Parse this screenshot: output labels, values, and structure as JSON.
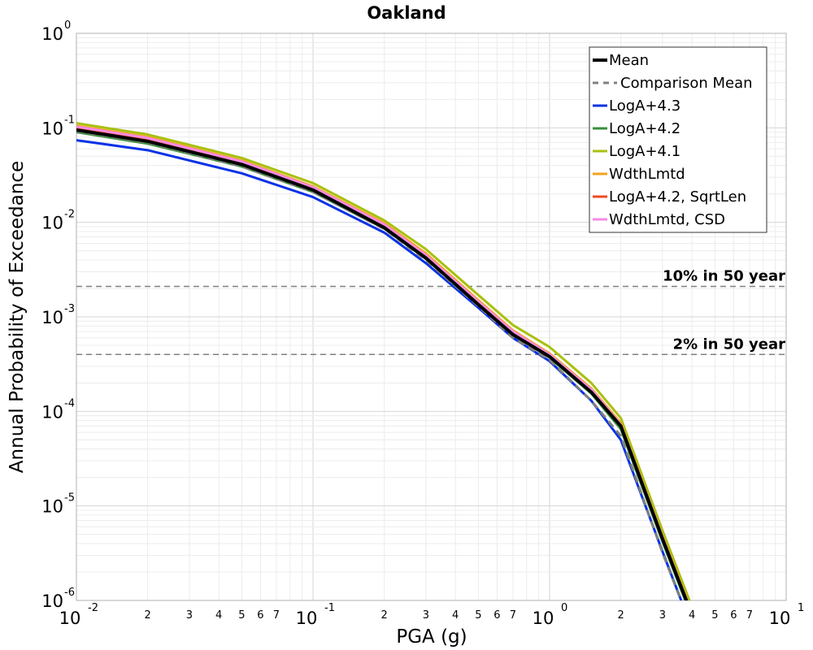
{
  "chart_data": {
    "type": "line",
    "title": "Oakland",
    "xlabel": "PGA (g)",
    "ylabel": "Annual Probability of Exceedance",
    "xscale": "log",
    "yscale": "log",
    "xlim": [
      0.01,
      10
    ],
    "ylim": [
      1e-06,
      1
    ],
    "grid": true,
    "legend_position": "top-right",
    "x_ticks": [
      {
        "base": "10",
        "exp": "-2",
        "value": 0.01
      },
      {
        "base": "10",
        "exp": "-1",
        "value": 0.1
      },
      {
        "base": "10",
        "exp": "0",
        "value": 1
      },
      {
        "base": "10",
        "exp": "1",
        "value": 10
      }
    ],
    "y_ticks": [
      {
        "base": "10",
        "exp": "0",
        "value": 1
      },
      {
        "base": "10",
        "exp": "-1",
        "value": 0.1
      },
      {
        "base": "10",
        "exp": "-2",
        "value": 0.01
      },
      {
        "base": "10",
        "exp": "-3",
        "value": 0.001
      },
      {
        "base": "10",
        "exp": "-4",
        "value": 0.0001
      },
      {
        "base": "10",
        "exp": "-5",
        "value": 1e-05
      },
      {
        "base": "10",
        "exp": "-6",
        "value": 1e-06
      }
    ],
    "x_minor_labels": [
      "2",
      "3",
      "4",
      "5",
      "6",
      "7"
    ],
    "x": [
      0.01,
      0.02,
      0.05,
      0.1,
      0.2,
      0.3,
      0.5,
      0.7,
      1.0,
      1.5,
      2.0,
      3.0,
      4.0
    ],
    "series": [
      {
        "name": "Mean",
        "color": "#000000",
        "style": "solid",
        "values": [
          0.095,
          0.072,
          0.041,
          0.022,
          0.0088,
          0.0042,
          0.00135,
          0.00065,
          0.00038,
          0.00016,
          7e-05,
          4.5e-06,
          7e-07
        ]
      },
      {
        "name": "Comparison Mean",
        "color": "#808080",
        "style": "dashed",
        "values": [
          0.092,
          0.07,
          0.039,
          0.021,
          0.0085,
          0.004,
          0.0013,
          0.0006,
          0.00035,
          0.00013,
          5.5e-05,
          3.2e-06,
          5e-07
        ]
      },
      {
        "name": "LogA+4.3",
        "color": "#0a32e6",
        "style": "solid",
        "values": [
          0.074,
          0.058,
          0.033,
          0.0185,
          0.0078,
          0.0037,
          0.00125,
          0.0006,
          0.00034,
          0.00013,
          5e-05,
          3.3e-06,
          5e-07
        ]
      },
      {
        "name": "LogA+4.2",
        "color": "#3a8f3a",
        "style": "solid",
        "values": [
          0.09,
          0.068,
          0.039,
          0.021,
          0.0086,
          0.0041,
          0.00135,
          0.00065,
          0.00037,
          0.000155,
          6.5e-05,
          4.2e-06,
          6.5e-07
        ]
      },
      {
        "name": "LogA+4.1",
        "color": "#a8c010",
        "style": "solid",
        "values": [
          0.112,
          0.085,
          0.048,
          0.026,
          0.0105,
          0.0052,
          0.0017,
          0.00082,
          0.00048,
          0.0002,
          8.5e-05,
          5.5e-06,
          8.5e-07
        ]
      },
      {
        "name": "WdthLmtd",
        "color": "#f5a21e",
        "style": "solid",
        "values": [
          0.105,
          0.08,
          0.045,
          0.024,
          0.0098,
          0.0047,
          0.0015,
          0.00072,
          0.00041,
          0.000175,
          7.5e-05,
          4.8e-06,
          7.5e-07
        ]
      },
      {
        "name": "LogA+4.2, SqrtLen",
        "color": "#f04a1e",
        "style": "solid",
        "values": [
          0.1,
          0.076,
          0.043,
          0.023,
          0.0093,
          0.0044,
          0.00142,
          0.00068,
          0.00039,
          0.000165,
          7e-05,
          4.5e-06,
          7e-07
        ]
      },
      {
        "name": "WdthLmtd, CSD",
        "color": "#f58ae6",
        "style": "solid",
        "values": [
          0.103,
          0.078,
          0.044,
          0.0235,
          0.0095,
          0.0045,
          0.00145,
          0.0007,
          0.0004,
          0.00017,
          7.2e-05,
          4.7e-06,
          7.2e-07
        ]
      }
    ],
    "reference_lines": [
      {
        "label": "10% in 50 year",
        "y": 0.0021,
        "color": "#808080",
        "style": "dashed"
      },
      {
        "label": "2% in 50 year",
        "y": 0.0004,
        "color": "#808080",
        "style": "dashed"
      }
    ]
  }
}
